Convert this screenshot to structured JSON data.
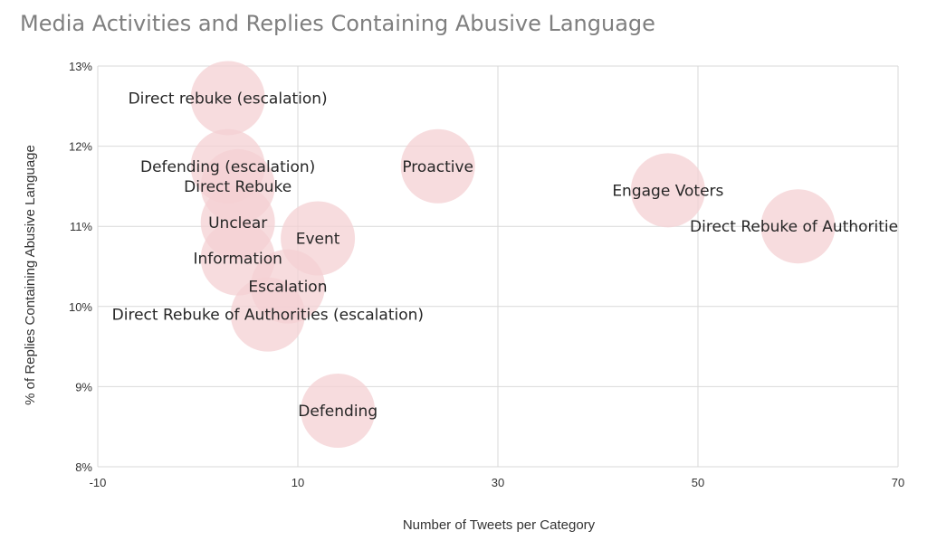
{
  "chart_data": {
    "type": "bubble",
    "title": "Media Activities and Replies Containing Abusive Language",
    "xlabel": "Number of Tweets per Category",
    "ylabel": "% of Replies Containing Abusive Language",
    "xlim": [
      -10,
      70
    ],
    "ylim": [
      8,
      13
    ],
    "x_ticks": [
      "-10",
      "10",
      "30",
      "50",
      "70"
    ],
    "y_ticks": [
      "8%",
      "9%",
      "10%",
      "11%",
      "12%",
      "13%"
    ],
    "grid": true,
    "bubble_color": "#f4d0d3",
    "points": [
      {
        "label": "Direct rebuke (escalation)",
        "x": 3,
        "y": 12.6
      },
      {
        "label": "Defending (escalation)",
        "x": 3,
        "y": 11.75
      },
      {
        "label": "Direct Rebuke",
        "x": 4,
        "y": 11.5
      },
      {
        "label": "Proactive",
        "x": 24,
        "y": 11.75
      },
      {
        "label": "Engage Voters",
        "x": 47,
        "y": 11.45
      },
      {
        "label": "Direct Rebuke of Authorities",
        "x": 60,
        "y": 11.0
      },
      {
        "label": "Unclear",
        "x": 4,
        "y": 11.05
      },
      {
        "label": "Event",
        "x": 12,
        "y": 10.85
      },
      {
        "label": "Information",
        "x": 4,
        "y": 10.6
      },
      {
        "label": "Escalation",
        "x": 9,
        "y": 10.25
      },
      {
        "label": "Direct Rebuke of Authorities (escalation)",
        "x": 7,
        "y": 9.9
      },
      {
        "label": "Defending",
        "x": 14,
        "y": 8.7
      }
    ]
  }
}
